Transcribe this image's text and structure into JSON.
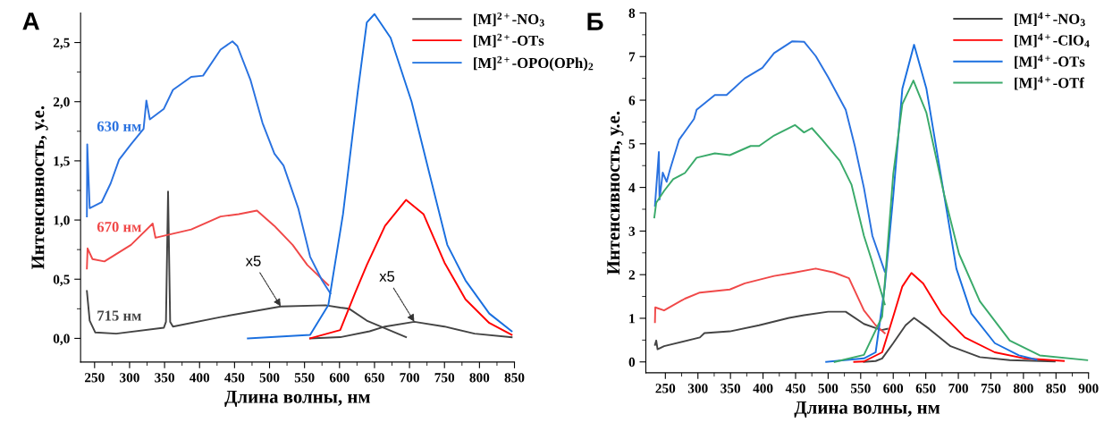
{
  "chart_data": [
    {
      "type": "line",
      "title": "А",
      "xlabel": "Длина волны, нм",
      "ylabel": "Интенсивность, у.е.",
      "xlim": [
        230,
        850
      ],
      "xticks": [
        250,
        300,
        350,
        400,
        450,
        500,
        550,
        600,
        650,
        700,
        750,
        800,
        850
      ],
      "ylim": [
        -0.2,
        2.75
      ],
      "yticks": [
        {
          "value": 0,
          "label": "0,0"
        },
        {
          "value": 0.5,
          "label": "0,5"
        },
        {
          "value": 1,
          "label": "1,0"
        },
        {
          "value": 1.5,
          "label": "1,5"
        },
        {
          "value": 2,
          "label": "2,0"
        },
        {
          "value": 2.5,
          "label": "2,5"
        }
      ],
      "legend": "top right",
      "grid": false,
      "annotations": [
        {
          "text": "x5",
          "x": 516,
          "y": 0.27
        },
        {
          "text": "x5",
          "x": 707,
          "y": 0.14
        }
      ],
      "series": [
        {
          "name": "715 нм",
          "color": "#444444",
          "x": [
            239,
            243,
            251,
            281,
            349,
            352,
            355,
            358,
            362,
            430,
            516,
            580,
            601,
            614,
            639,
            695
          ],
          "values": [
            0.4,
            0.15,
            0.05,
            0.04,
            0.09,
            0.14,
            1.24,
            0.14,
            0.1,
            0.18,
            0.27,
            0.28,
            0.26,
            0.25,
            0.15,
            0.01
          ]
        },
        {
          "name": "670 нм",
          "color": "#f04848",
          "x": [
            239,
            240,
            247,
            264,
            302,
            333,
            337,
            388,
            430,
            456,
            482,
            507,
            533,
            554,
            584
          ],
          "values": [
            0.59,
            0.76,
            0.67,
            0.65,
            0.79,
            0.97,
            0.85,
            0.92,
            1.03,
            1.05,
            1.08,
            0.95,
            0.79,
            0.62,
            0.45
          ]
        },
        {
          "name": "630 нм",
          "color": "#2a72e0",
          "x": [
            239,
            239.5,
            243,
            260,
            273,
            285,
            302,
            320,
            324,
            329,
            349,
            362,
            388,
            405,
            430,
            447,
            454,
            473,
            490,
            507,
            520,
            541,
            558,
            575,
            587
          ],
          "values": [
            1.03,
            1.64,
            1.1,
            1.15,
            1.31,
            1.51,
            1.64,
            1.77,
            2.01,
            1.85,
            1.94,
            2.1,
            2.21,
            2.22,
            2.44,
            2.51,
            2.47,
            2.18,
            1.82,
            1.56,
            1.46,
            1.1,
            0.69,
            0.49,
            0.38
          ]
        },
        {
          "name": "[M]$^{2+}$-NO$_{3}$",
          "color": "#444444",
          "x": [
            558,
            601,
            643,
            665,
            707,
            750,
            793,
            846
          ],
          "values": [
            0,
            0.01,
            0.06,
            0.1,
            0.14,
            0.1,
            0.04,
            0.01
          ]
        },
        {
          "name": "[M]$^{2+}$-OTs",
          "color": "#ff0000",
          "x": [
            558,
            601,
            622,
            639,
            665,
            695,
            720,
            750,
            780,
            814,
            846
          ],
          "values": [
            0,
            0.07,
            0.38,
            0.62,
            0.95,
            1.17,
            1.05,
            0.64,
            0.33,
            0.13,
            0.03
          ]
        },
        {
          "name": "[M]$^{2+}$-OPO(OPh)$_{2}$",
          "color": "#1a6fdf",
          "x": [
            469,
            558,
            584,
            605,
            626,
            639,
            650,
            673,
            703,
            729,
            754,
            780,
            814,
            846
          ],
          "values": [
            0,
            0.03,
            0.28,
            1.05,
            2.08,
            2.67,
            2.74,
            2.54,
            2.0,
            1.38,
            0.79,
            0.49,
            0.21,
            0.06
          ]
        }
      ]
    },
    {
      "type": "line",
      "title": "Б",
      "xlabel": "Длина волны, нм",
      "ylabel": "Интенсивность, у.е.",
      "xlim": [
        220,
        900
      ],
      "xticks": [
        250,
        300,
        350,
        400,
        450,
        500,
        550,
        600,
        650,
        700,
        750,
        800,
        850,
        900
      ],
      "ylim": [
        -0.25,
        8
      ],
      "yticks": [
        0,
        1,
        2,
        3,
        4,
        5,
        6,
        7,
        8
      ],
      "legend": "top right",
      "grid": false,
      "series": [
        {
          "color": "#444444",
          "x": [
            234,
            236,
            238,
            248,
            303,
            310,
            349,
            394,
            440,
            463,
            500,
            527,
            555,
            582,
            591
          ],
          "values": [
            0.39,
            0.49,
            0.29,
            0.36,
            0.56,
            0.66,
            0.7,
            0.84,
            1.01,
            1.07,
            1.15,
            1.15,
            0.87,
            0.73,
            0.76
          ]
        },
        {
          "color": "#f04848",
          "x": [
            234,
            234.5,
            248,
            280,
            303,
            349,
            372,
            417,
            445,
            481,
            509,
            532,
            555,
            573,
            587
          ],
          "values": [
            0.91,
            1.25,
            1.18,
            1.45,
            1.59,
            1.66,
            1.8,
            1.97,
            2.04,
            2.14,
            2.05,
            1.92,
            1.18,
            0.84,
            0.66
          ]
        },
        {
          "color": "#2a72e0",
          "x": [
            234,
            240,
            241,
            246,
            252,
            257,
            271,
            294,
            298,
            326,
            344,
            372,
            399,
            417,
            445,
            463,
            481,
            500,
            527,
            541,
            555,
            568,
            587
          ],
          "values": [
            3.58,
            4.81,
            3.72,
            4.34,
            4.13,
            4.4,
            5.09,
            5.57,
            5.78,
            6.12,
            6.12,
            6.5,
            6.74,
            7.08,
            7.35,
            7.34,
            7.01,
            6.53,
            5.78,
            4.95,
            3.99,
            2.89,
            2.07
          ]
        },
        {
          "color": "#3aaa6a",
          "x": [
            233,
            236,
            248,
            262,
            280,
            298,
            326,
            349,
            381,
            394,
            417,
            449,
            463,
            475,
            491,
            518,
            536,
            555,
            568,
            587
          ],
          "values": [
            3.31,
            3.65,
            3.92,
            4.19,
            4.33,
            4.68,
            4.78,
            4.74,
            4.95,
            4.95,
            5.19,
            5.43,
            5.26,
            5.36,
            5.09,
            4.61,
            4.06,
            2.89,
            2.28,
            1.32
          ]
        },
        {
          "name": "[M]$^{4+}$-NO$_{3}$",
          "color": "#444444",
          "x": [
            555,
            573,
            583,
            600,
            619,
            632,
            655,
            688,
            733,
            779,
            848
          ],
          "values": [
            0,
            0.02,
            0.08,
            0.43,
            0.84,
            1.01,
            0.76,
            0.36,
            0.11,
            0.04,
            0.01
          ]
        },
        {
          "name": "[M]$^{4+}$-ClO$_{4}$",
          "color": "#ff0000",
          "x": [
            540,
            555,
            583,
            600,
            614,
            628,
            646,
            674,
            710,
            756,
            802,
            862
          ],
          "values": [
            0,
            0.01,
            0.22,
            1.04,
            1.73,
            2.04,
            1.8,
            1.11,
            0.56,
            0.22,
            0.08,
            0.02
          ]
        },
        {
          "name": "[M]$^{4+}$-OTs",
          "color": "#1a6fdf",
          "x": [
            497,
            555,
            573,
            587,
            600,
            614,
            632,
            651,
            674,
            697,
            720,
            756,
            793,
            820
          ],
          "values": [
            0,
            0.08,
            0.22,
            1.73,
            3.8,
            6.26,
            7.27,
            6.26,
            4.2,
            2.14,
            1.11,
            0.43,
            0.15,
            0.05
          ]
        },
        {
          "name": "[M]$^{4+}$-OTf",
          "color": "#3aaa6a",
          "x": [
            510,
            555,
            583,
            600,
            614,
            631,
            651,
            678,
            701,
            733,
            779,
            825,
            898
          ],
          "values": [
            0,
            0.16,
            1.04,
            4.3,
            5.91,
            6.45,
            5.71,
            3.85,
            2.48,
            1.39,
            0.49,
            0.15,
            0.04
          ]
        }
      ]
    }
  ]
}
